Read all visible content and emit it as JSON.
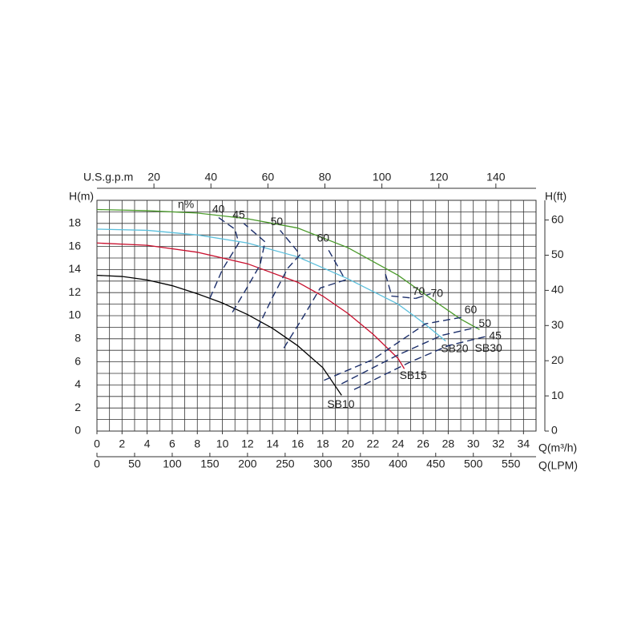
{
  "chart_data": {
    "type": "line",
    "ylabel": "H(m)",
    "xlabel": "Q(m³/h)",
    "x2label": "U.S.g.p.m",
    "x3label": "Q(LPM)",
    "y2label": "H(ft)",
    "efficiency_label": "η%",
    "xlim": [
      0,
      35
    ],
    "ylim": [
      0,
      20
    ],
    "xticks": [
      0,
      2,
      4,
      6,
      8,
      10,
      12,
      14,
      16,
      18,
      20,
      22,
      24,
      26,
      28,
      30,
      32,
      34
    ],
    "yticks": [
      0,
      2,
      4,
      6,
      8,
      10,
      12,
      14,
      16,
      18
    ],
    "xgrid": [
      0,
      1,
      2,
      3,
      4,
      5,
      6,
      7,
      8,
      9,
      10,
      11,
      12,
      13,
      14,
      15,
      16,
      17,
      18,
      19,
      20,
      21,
      22,
      23,
      24,
      25,
      26,
      27,
      28,
      29,
      30,
      31,
      32,
      33,
      34,
      35
    ],
    "ygrid": [
      0,
      1,
      2,
      3,
      4,
      5,
      6,
      7,
      8,
      9,
      10,
      11,
      12,
      13,
      14,
      15,
      16,
      17,
      18,
      19,
      20
    ],
    "x2lim": [
      0,
      154.1
    ],
    "x2ticks": [
      20,
      40,
      60,
      80,
      100,
      120,
      140
    ],
    "x3lim": [
      0,
      583.3
    ],
    "x3ticks": [
      0,
      50,
      100,
      150,
      200,
      250,
      300,
      350,
      400,
      450,
      500,
      550
    ],
    "y2lim": [
      0,
      65.6
    ],
    "y2ticks": [
      0,
      10,
      20,
      30,
      40,
      50,
      60
    ],
    "grid": true,
    "series": [
      {
        "name": "SB10",
        "color": "#000000",
        "x": [
          0,
          2,
          4,
          6,
          8,
          10,
          12,
          14,
          16,
          18,
          19.5
        ],
        "values": [
          13.5,
          13.4,
          13.1,
          12.6,
          11.9,
          11.1,
          10.1,
          8.9,
          7.4,
          5.5,
          3.1
        ]
      },
      {
        "name": "SB15",
        "color": "#c8102e",
        "x": [
          0,
          4,
          8,
          12,
          16,
          18,
          20,
          22,
          24,
          24.5
        ],
        "values": [
          16.3,
          16.1,
          15.5,
          14.5,
          12.9,
          11.7,
          10.2,
          8.4,
          6.3,
          5.4
        ]
      },
      {
        "name": "SB20",
        "color": "#5bbfdc",
        "x": [
          0,
          4,
          8,
          12,
          16,
          20,
          24,
          26,
          27.8
        ],
        "values": [
          17.5,
          17.4,
          17.0,
          16.3,
          15.1,
          13.2,
          11.0,
          9.4,
          7.8
        ]
      },
      {
        "name": "SB30",
        "color": "#4a9a2a",
        "x": [
          0,
          4,
          8,
          12,
          16,
          20,
          24,
          27,
          29,
          30.5
        ],
        "values": [
          19.2,
          19.1,
          18.9,
          18.4,
          17.6,
          15.9,
          13.5,
          11.2,
          9.7,
          8.8
        ]
      }
    ],
    "efficiency_curves": [
      {
        "label": "40",
        "x": [
          9.0,
          10.0,
          11.3,
          11.0,
          9.7
        ],
        "values": [
          11.5,
          14.0,
          16.3,
          17.5,
          18.5
        ]
      },
      {
        "label": "45",
        "x": [
          10.8,
          12.0,
          13.0,
          13.4,
          11.7
        ],
        "values": [
          10.3,
          12.5,
          14.4,
          16.4,
          18.0
        ]
      },
      {
        "label": "50",
        "x": [
          12.8,
          14.0,
          15.2,
          16.2,
          14.6
        ],
        "values": [
          8.9,
          11.6,
          14.1,
          15.3,
          17.4
        ]
      },
      {
        "label": "60",
        "x": [
          14.9,
          16.5,
          17.8,
          19.8,
          18.3
        ],
        "values": [
          7.2,
          10.0,
          12.4,
          13.1,
          16.0
        ]
      },
      {
        "label": "70",
        "x": [
          23.0,
          23.5,
          25.4
        ],
        "values": [
          13.6,
          11.7,
          11.5
        ]
      },
      {
        "label": "70",
        "x": [
          25.4,
          26.6
        ],
        "values": [
          11.5,
          11.9
        ]
      },
      {
        "label": "60",
        "x": [
          18.1,
          22.0,
          26.2,
          29.3
        ],
        "values": [
          4.4,
          6.2,
          9.3,
          9.9
        ]
      },
      {
        "label": "50",
        "x": [
          19.5,
          24.0,
          27.5,
          30.3
        ],
        "values": [
          4.1,
          6.6,
          8.3,
          9.0
        ]
      },
      {
        "label": "45",
        "x": [
          20.5,
          25.0,
          28.0,
          31.0
        ],
        "values": [
          3.6,
          6.0,
          7.4,
          8.2
        ]
      }
    ]
  }
}
